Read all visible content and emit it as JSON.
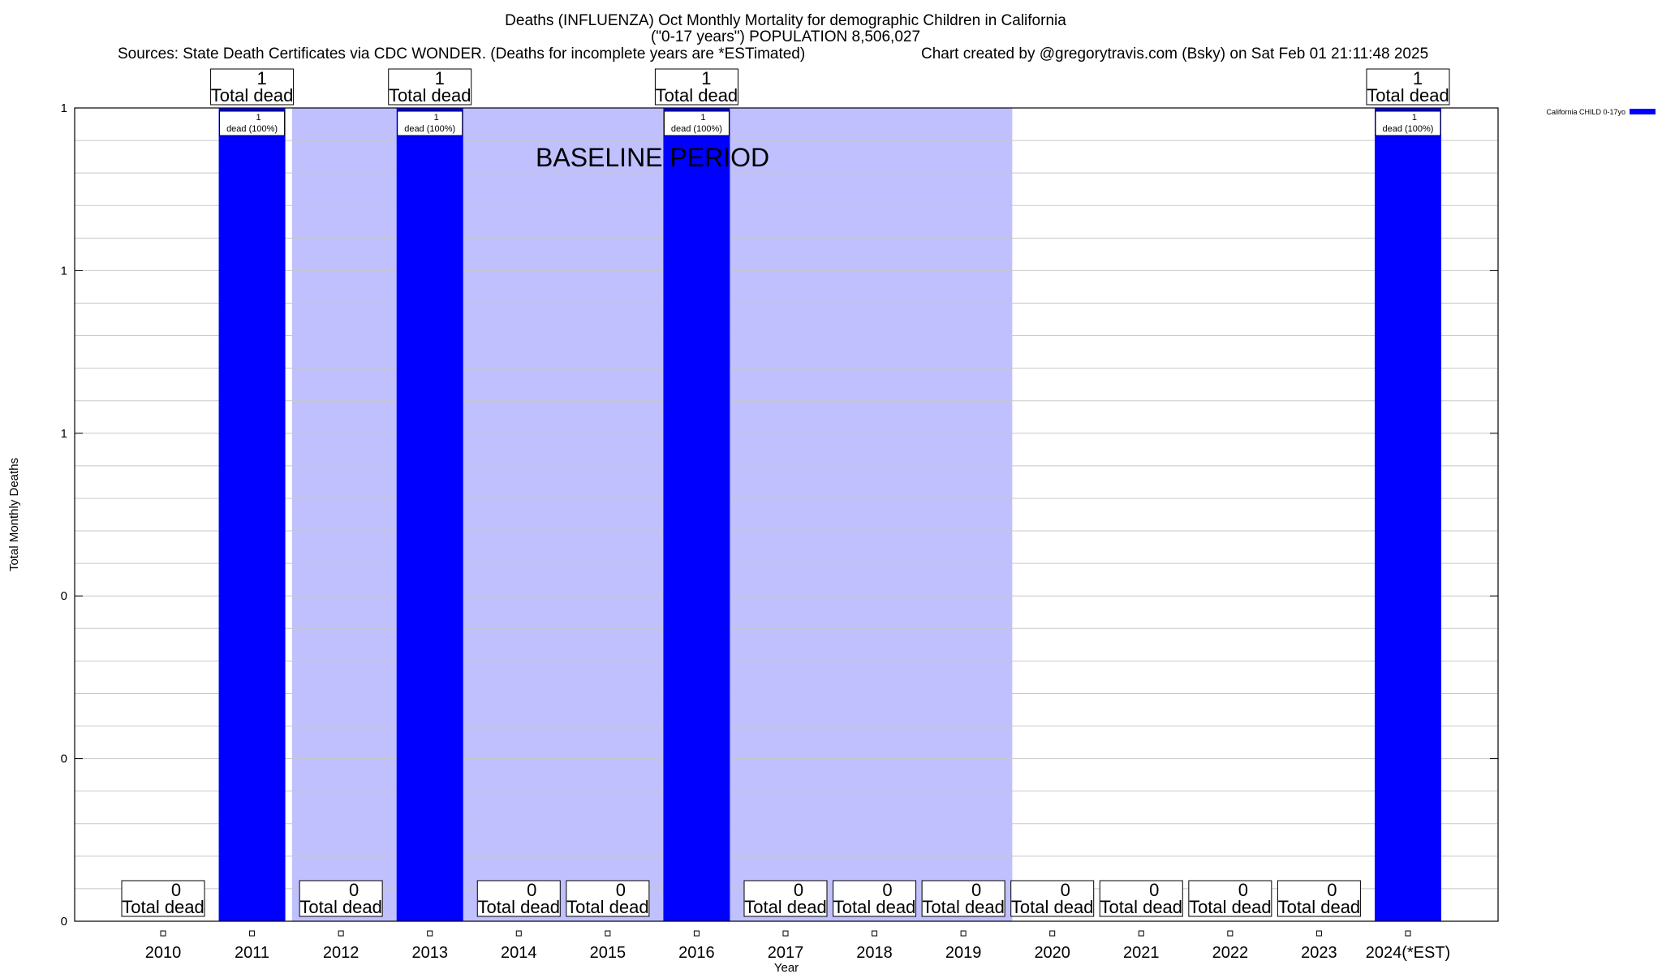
{
  "chart_data": {
    "type": "bar",
    "title": "Deaths (INFLUENZA) Oct Monthly Mortality for demographic Children in California",
    "subtitle": "(\"0-17 years\") POPULATION 8,506,027",
    "sources": "Sources: State Death Certificates via CDC WONDER. (Deaths for incomplete years are *ESTimated)",
    "credit": "Chart created by @gregorytravis.com (Bsky) on Sat Feb 01 21:11:48 2025",
    "xlabel": "Year",
    "ylabel": "Total Monthly Deaths",
    "ylim": [
      0,
      1
    ],
    "ytick_values": [
      0,
      0.2,
      0.4,
      0.6,
      0.8,
      1.0
    ],
    "ytick_labels": [
      "0",
      "0",
      "0",
      "1",
      "1",
      "1"
    ],
    "grid": true,
    "categories": [
      "2010",
      "2011",
      "2012",
      "2013",
      "2014",
      "2015",
      "2016",
      "2017",
      "2018",
      "2019",
      "2020",
      "2021",
      "2022",
      "2023",
      "2024(*EST)"
    ],
    "series": [
      {
        "name": "California CHILD 0-17yo",
        "color": "#0000ff",
        "values": [
          0,
          1,
          0,
          1,
          0,
          0,
          1,
          0,
          0,
          0,
          0,
          0,
          0,
          0,
          1
        ]
      }
    ],
    "total_label_text": "Total dead",
    "inner_label_text": "dead (100%)",
    "baseline": {
      "label": "BASELINE PERIOD",
      "start": "2012",
      "end": "2019",
      "color": "#c0c0ff"
    },
    "legend_position": "top-right"
  }
}
